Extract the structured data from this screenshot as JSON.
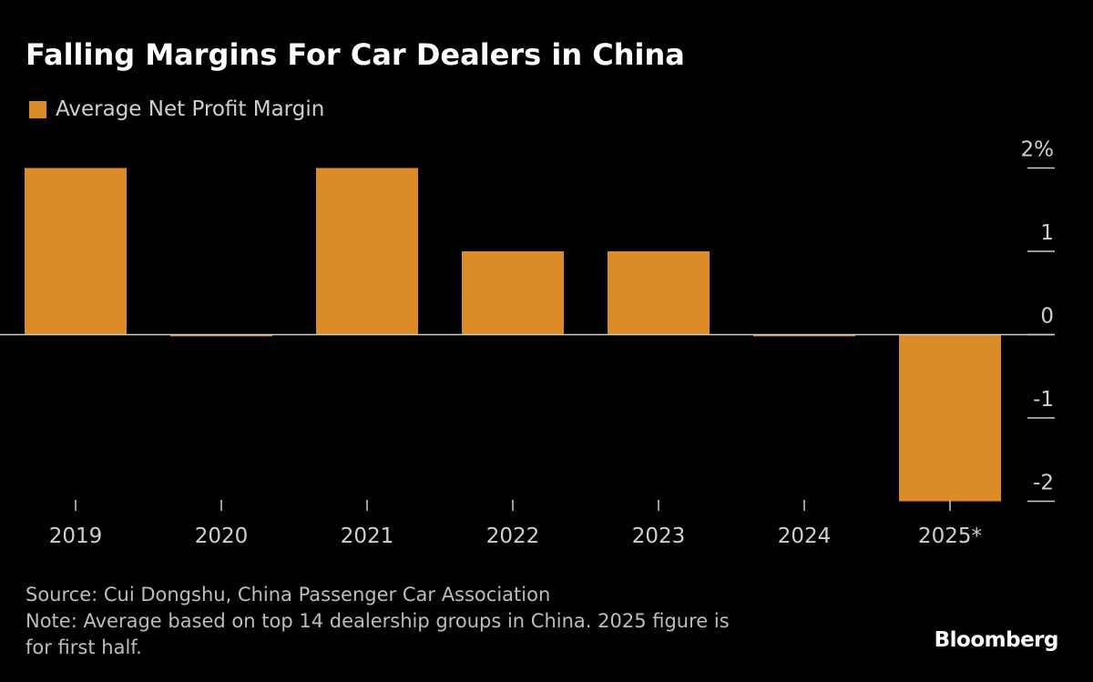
{
  "title": "Falling Margins For Car Dealers in China",
  "legend": {
    "label": "Average Net Profit Margin",
    "color": "#DB8B27"
  },
  "chart_data": {
    "type": "bar",
    "title": "Falling Margins For Car Dealers in China",
    "categories": [
      "2019",
      "2020",
      "2021",
      "2022",
      "2023",
      "2024",
      "2025*"
    ],
    "series": [
      {
        "name": "Average Net Profit Margin",
        "values": [
          2.0,
          -0.02,
          2.0,
          1.0,
          1.0,
          -0.02,
          -2.0
        ]
      }
    ],
    "xlabel": "",
    "ylabel": "",
    "ylim": [
      -2,
      2
    ],
    "yticks": [
      2,
      1,
      0,
      -1,
      -2
    ],
    "ytick_labels": [
      "2%",
      "1",
      "0",
      "-1",
      "-2"
    ],
    "y_axis_position": "right",
    "grid": false,
    "legend_position": "top-left",
    "bar_color": "#DB8B27",
    "zero_line_color": "#cccccc"
  },
  "footer": {
    "source": "Source: Cui Dongshu, China Passenger Car Association",
    "note_line1": "Note: Average based on top 14 dealership groups in China. 2025 figure is",
    "note_line2": "for first half."
  },
  "brand": "Bloomberg"
}
